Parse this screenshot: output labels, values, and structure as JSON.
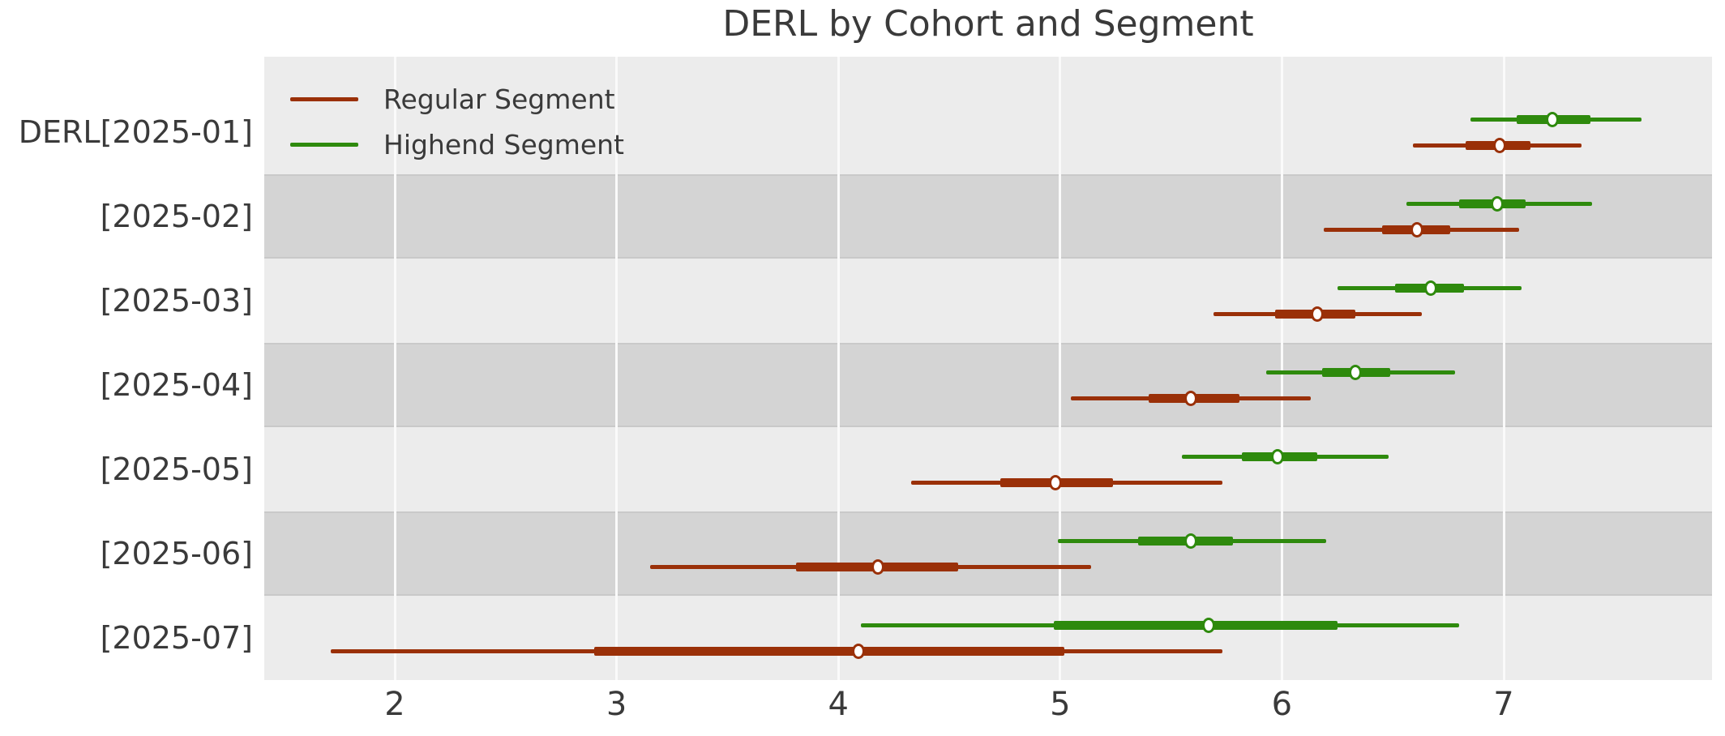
{
  "title": "DERL by Cohort and Segment",
  "legend": {
    "entries": [
      {
        "label": "Regular Segment",
        "color": "#9a3008"
      },
      {
        "label": "Highend Segment",
        "color": "#2e8a0d"
      }
    ]
  },
  "x_axis": {
    "tick_labels": [
      "2",
      "3",
      "4",
      "5",
      "6",
      "7"
    ],
    "ticks": [
      2,
      3,
      4,
      5,
      6,
      7
    ]
  },
  "y_axis": {
    "labels": [
      "DERL[2025-01]",
      "[2025-02]",
      "[2025-03]",
      "[2025-04]",
      "[2025-05]",
      "[2025-06]",
      "[2025-07]"
    ]
  },
  "colors": {
    "regular_segment": "#9a3008",
    "highend_segment": "#2e8a0d",
    "band_light": "#ececec",
    "band_dark": "#d4d4d4",
    "gridline": "#fafafa",
    "text": "#3a3a3a",
    "marker_fill": "#ffffff"
  },
  "chart_data": {
    "type": "forest",
    "title": "DERL by Cohort and Segment",
    "categories": [
      "DERL[2025-01]",
      "[2025-02]",
      "[2025-03]",
      "[2025-04]",
      "[2025-05]",
      "[2025-06]",
      "[2025-07]"
    ],
    "xlim": [
      1.41,
      7.95
    ],
    "x_ticks": [
      2,
      3,
      4,
      5,
      6,
      7
    ],
    "grid": "vertical light gridlines over alternating gray row bands",
    "legend_position": "upper left",
    "marker": "open circle at median; thick bar = interquartile interval; thin line = full credible interval",
    "series": [
      {
        "name": "Highend Segment",
        "color": "#2e8a0d",
        "intervals": [
          {
            "lo": 6.85,
            "q1": 7.06,
            "median": 7.22,
            "q3": 7.39,
            "hi": 7.62
          },
          {
            "lo": 6.56,
            "q1": 6.8,
            "median": 6.97,
            "q3": 7.1,
            "hi": 7.4
          },
          {
            "lo": 6.25,
            "q1": 6.51,
            "median": 6.67,
            "q3": 6.82,
            "hi": 7.08
          },
          {
            "lo": 5.93,
            "q1": 6.18,
            "median": 6.33,
            "q3": 6.49,
            "hi": 6.78
          },
          {
            "lo": 5.55,
            "q1": 5.82,
            "median": 5.98,
            "q3": 6.16,
            "hi": 6.48
          },
          {
            "lo": 4.99,
            "q1": 5.35,
            "median": 5.59,
            "q3": 5.78,
            "hi": 6.2
          },
          {
            "lo": 4.1,
            "q1": 4.97,
            "median": 5.67,
            "q3": 6.25,
            "hi": 6.8
          }
        ]
      },
      {
        "name": "Regular Segment",
        "color": "#9a3008",
        "intervals": [
          {
            "lo": 6.59,
            "q1": 6.83,
            "median": 6.98,
            "q3": 7.12,
            "hi": 7.35
          },
          {
            "lo": 6.19,
            "q1": 6.45,
            "median": 6.61,
            "q3": 6.76,
            "hi": 7.07
          },
          {
            "lo": 5.69,
            "q1": 5.97,
            "median": 6.16,
            "q3": 6.33,
            "hi": 6.63
          },
          {
            "lo": 5.05,
            "q1": 5.4,
            "median": 5.59,
            "q3": 5.81,
            "hi": 6.13
          },
          {
            "lo": 4.33,
            "q1": 4.73,
            "median": 4.98,
            "q3": 5.24,
            "hi": 5.73
          },
          {
            "lo": 3.15,
            "q1": 3.81,
            "median": 4.18,
            "q3": 4.54,
            "hi": 5.14
          },
          {
            "lo": 1.71,
            "q1": 2.9,
            "median": 4.09,
            "q3": 5.02,
            "hi": 5.73
          }
        ]
      }
    ]
  }
}
